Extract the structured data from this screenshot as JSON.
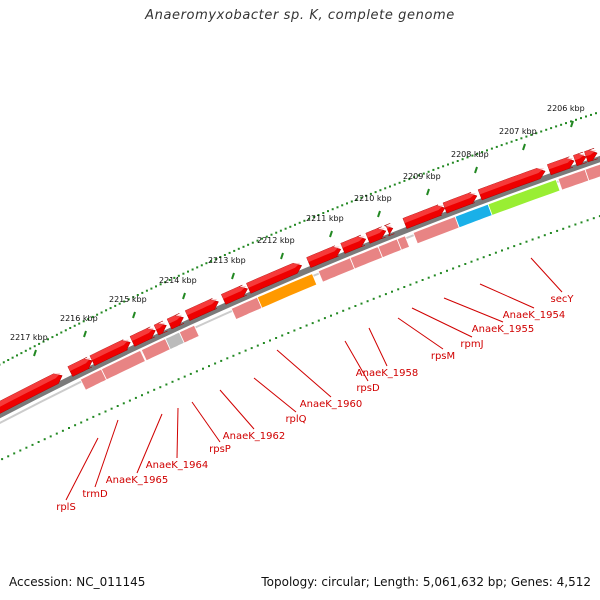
{
  "title": "Anaeromyxobacter sp. K, complete genome",
  "footer": {
    "accession": "Accession: NC_011145",
    "summary": "Topology: circular; Length: 5,061,632 bp; Genes: 4,512"
  },
  "colors": {
    "background": "#ffffff",
    "backbone": "#7a7a7a",
    "gene_forward": "#ee0000",
    "gene_pseudo": "#e88484",
    "ruler_ticks": "#228822",
    "label_text": "#d00000",
    "highlight_orange": "#ff9900",
    "highlight_blue": "#1ab0e8",
    "highlight_green": "#99ee33",
    "highlight_grey": "#bbbbbb"
  },
  "ruler": {
    "unit": "kbp",
    "labels": [
      "2206 kbp",
      "2207 kbp",
      "2208 kbp",
      "2209 kbp",
      "2210 kbp",
      "2211 kbp",
      "2212 kbp",
      "2213 kbp",
      "2214 kbp",
      "2215 kbp",
      "2216 kbp",
      "2217 kbp"
    ]
  },
  "gene_labels": [
    "secY",
    "AnaeK_1954",
    "AnaeK_1955",
    "rpmJ",
    "rpsM",
    "AnaeK_1958",
    "rpsD",
    "AnaeK_1960",
    "rplQ",
    "AnaeK_1962",
    "rpsP",
    "AnaeK_1964",
    "AnaeK_1965",
    "trmD",
    "rplS"
  ]
}
